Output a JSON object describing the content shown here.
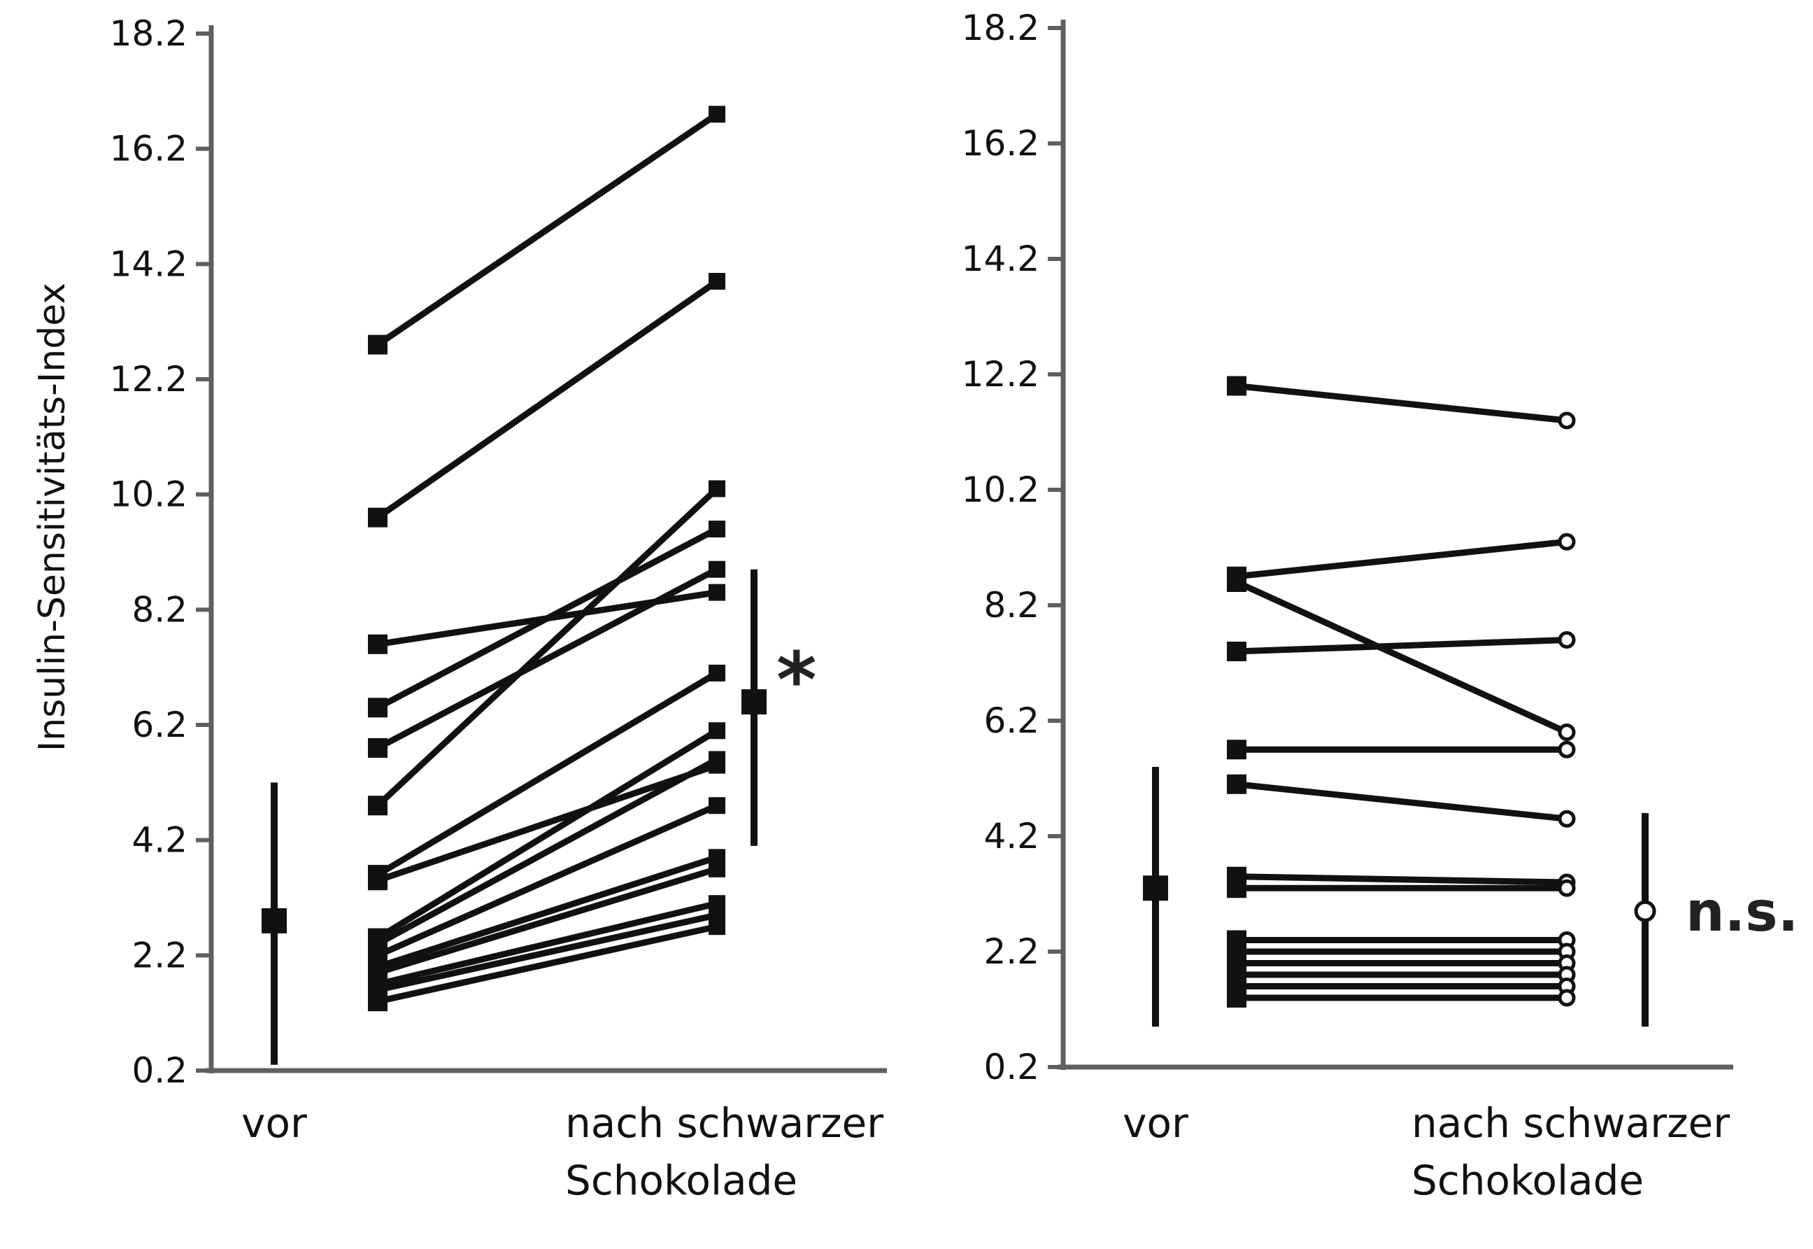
{
  "chart_data": [
    {
      "type": "line",
      "ylabel": "Insulin-Sensitivitäts-Index",
      "ylim": [
        0.2,
        18.2
      ],
      "yticks": [
        "0.2",
        "2.2",
        "4.2",
        "6.2",
        "8.2",
        "10.2",
        "12.2",
        "14.2",
        "16.2",
        "18.2"
      ],
      "categories": [
        "vor",
        "nach schwarzer Schokolade"
      ],
      "marker": "filled-square",
      "series": [
        {
          "values": [
            12.8,
            16.8
          ]
        },
        {
          "values": [
            9.8,
            13.9
          ]
        },
        {
          "values": [
            7.6,
            8.5
          ]
        },
        {
          "values": [
            6.5,
            9.6
          ]
        },
        {
          "values": [
            5.8,
            8.9
          ]
        },
        {
          "values": [
            4.8,
            10.3
          ]
        },
        {
          "values": [
            3.6,
            7.1
          ]
        },
        {
          "values": [
            3.5,
            5.5
          ]
        },
        {
          "values": [
            2.5,
            6.1
          ]
        },
        {
          "values": [
            2.4,
            5.6
          ]
        },
        {
          "values": [
            2.2,
            4.8
          ]
        },
        {
          "values": [
            2.0,
            3.9
          ]
        },
        {
          "values": [
            1.9,
            3.7
          ]
        },
        {
          "values": [
            1.7,
            3.1
          ]
        },
        {
          "values": [
            1.6,
            2.9
          ]
        },
        {
          "values": [
            1.4,
            2.7
          ]
        }
      ],
      "summary": [
        {
          "category": "vor",
          "mean": 2.8,
          "low": 0.3,
          "high": 5.2
        },
        {
          "category": "nach schwarzer Schokolade",
          "mean": 6.6,
          "low": 4.1,
          "high": 8.9
        }
      ],
      "annotation": "*"
    },
    {
      "type": "line",
      "ylim": [
        0.2,
        18.2
      ],
      "yticks": [
        "0.2",
        "2.2",
        "4.2",
        "6.2",
        "8.2",
        "10.2",
        "12.2",
        "14.2",
        "16.2",
        "18.2"
      ],
      "categories": [
        "vor",
        "nach schwarzer Schokolade"
      ],
      "marker": "open-circle",
      "series": [
        {
          "values": [
            12.0,
            11.4
          ]
        },
        {
          "values": [
            8.7,
            9.3
          ]
        },
        {
          "values": [
            8.6,
            6.0
          ]
        },
        {
          "values": [
            7.4,
            7.6
          ]
        },
        {
          "values": [
            5.7,
            5.7
          ]
        },
        {
          "values": [
            5.1,
            4.5
          ]
        },
        {
          "values": [
            3.5,
            3.4
          ]
        },
        {
          "values": [
            3.3,
            3.3
          ]
        },
        {
          "values": [
            2.4,
            2.4
          ]
        },
        {
          "values": [
            2.2,
            2.2
          ]
        },
        {
          "values": [
            2.0,
            2.0
          ]
        },
        {
          "values": [
            1.8,
            1.8
          ]
        },
        {
          "values": [
            1.6,
            1.6
          ]
        },
        {
          "values": [
            1.4,
            1.4
          ]
        }
      ],
      "summary": [
        {
          "category": "vor",
          "mean": 3.3,
          "low": 0.9,
          "high": 5.4
        },
        {
          "category": "nach schwarzer Schokolade",
          "mean": 2.9,
          "low": 0.9,
          "high": 4.6
        }
      ],
      "annotation": "n.s."
    }
  ]
}
